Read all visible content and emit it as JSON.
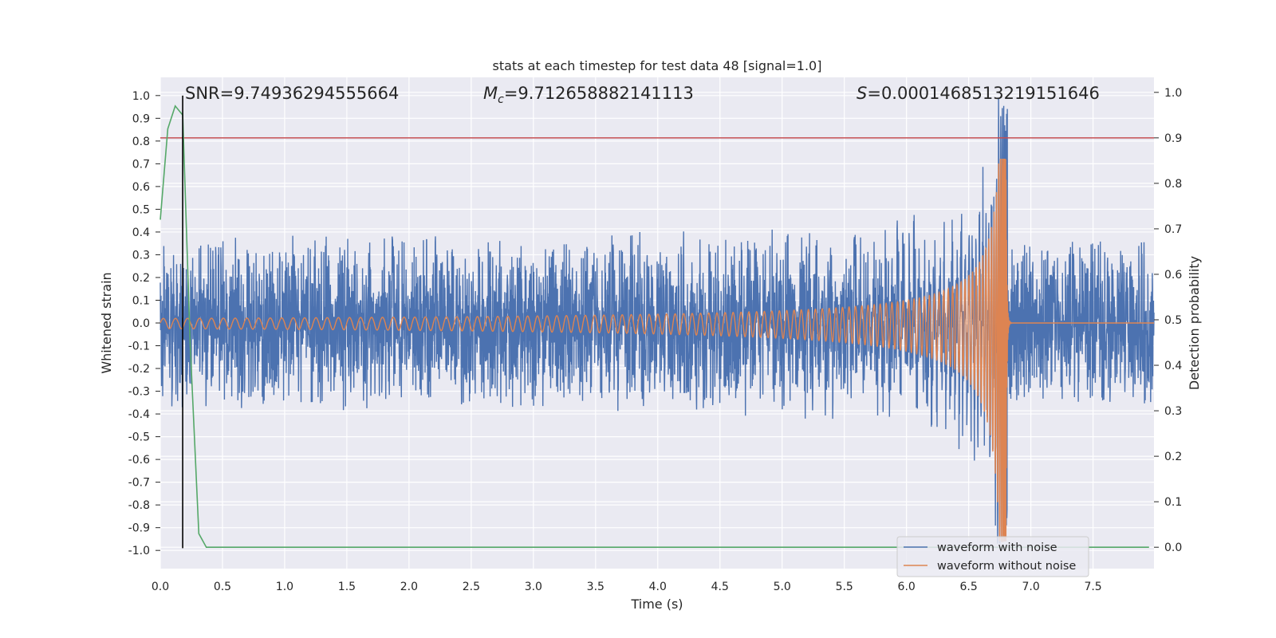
{
  "chart_data": {
    "type": "line",
    "title": "stats at each timestep for test data 48 [signal=1.0]",
    "xlabel": "Time (s)",
    "ylabel_left": "Whitened strain",
    "ylabel_right": "Detection probability",
    "xlim": [
      0.0,
      7.99
    ],
    "ylim_left": [
      -1.08,
      1.08
    ],
    "ylim_right": [
      -0.047,
      1.033
    ],
    "x_ticks": [
      "0.0",
      "0.5",
      "1.0",
      "1.5",
      "2.0",
      "2.5",
      "3.0",
      "3.5",
      "4.0",
      "4.5",
      "5.0",
      "5.5",
      "6.0",
      "6.5",
      "7.0",
      "7.5"
    ],
    "y_ticks_left": [
      "1.0",
      "0.9",
      "0.8",
      "0.7",
      "0.6",
      "0.5",
      "0.4",
      "0.3",
      "0.2",
      "0.1",
      "0.0",
      "-0.1",
      "-0.2",
      "-0.3",
      "-0.4",
      "-0.5",
      "-0.6",
      "-0.7",
      "-0.8",
      "-0.9",
      "-1.0"
    ],
    "y_ticks_right": [
      "1.0",
      "0.9",
      "0.8",
      "0.7",
      "0.6",
      "0.5",
      "0.4",
      "0.3",
      "0.2",
      "0.1",
      "0.0"
    ],
    "grid": true,
    "annotations": {
      "snr": "SNR=9.74936294555664",
      "mc_symbol": "M",
      "mc_sub": "c",
      "mc_value": "=9.712658882141113",
      "s_symbol": "S",
      "s_value": "=0.0001468513219151646"
    },
    "series": [
      {
        "name": "waveform with noise",
        "color": "#4c72b0",
        "description": "whitened noisy strain, noise envelope ~0.35, chirp grows to peak ~1.0 near 6.80 s",
        "noise_amplitude": 0.35,
        "merger_time": 6.8,
        "peak": 1.0
      },
      {
        "name": "waveform without noise",
        "color": "#dd8452",
        "description": "clean chirp signal, amplitude ~0.02 at 0 s rising to ~0.7 / -0.96 at merger 6.80 s, then ringdown to 0",
        "start_amplitude": 0.02,
        "merger_time": 6.8,
        "peak": 0.72,
        "trough": -0.96
      },
      {
        "name": "detection probability",
        "color": "#55a868",
        "axis": "right",
        "x": [
          0.0,
          0.06,
          0.12,
          0.18,
          0.24,
          0.31,
          0.37,
          0.5,
          1.0,
          2.0,
          3.0,
          4.0,
          5.0,
          6.0,
          7.0,
          7.95
        ],
        "values": [
          0.72,
          0.92,
          0.97,
          0.95,
          0.45,
          0.03,
          0.0,
          0.0,
          0.0,
          0.0,
          0.0,
          0.0,
          0.0,
          0.0,
          0.0,
          0.0
        ]
      }
    ],
    "threshold_line": {
      "axis": "right",
      "value": 0.9,
      "color": "#c44e52"
    },
    "marker_line": {
      "x": 0.18,
      "color": "#000000"
    },
    "legend": {
      "position": "lower-right",
      "entries": [
        {
          "label": "waveform with noise",
          "color": "#4c72b0"
        },
        {
          "label": "waveform without noise",
          "color": "#dd8452"
        }
      ]
    }
  }
}
